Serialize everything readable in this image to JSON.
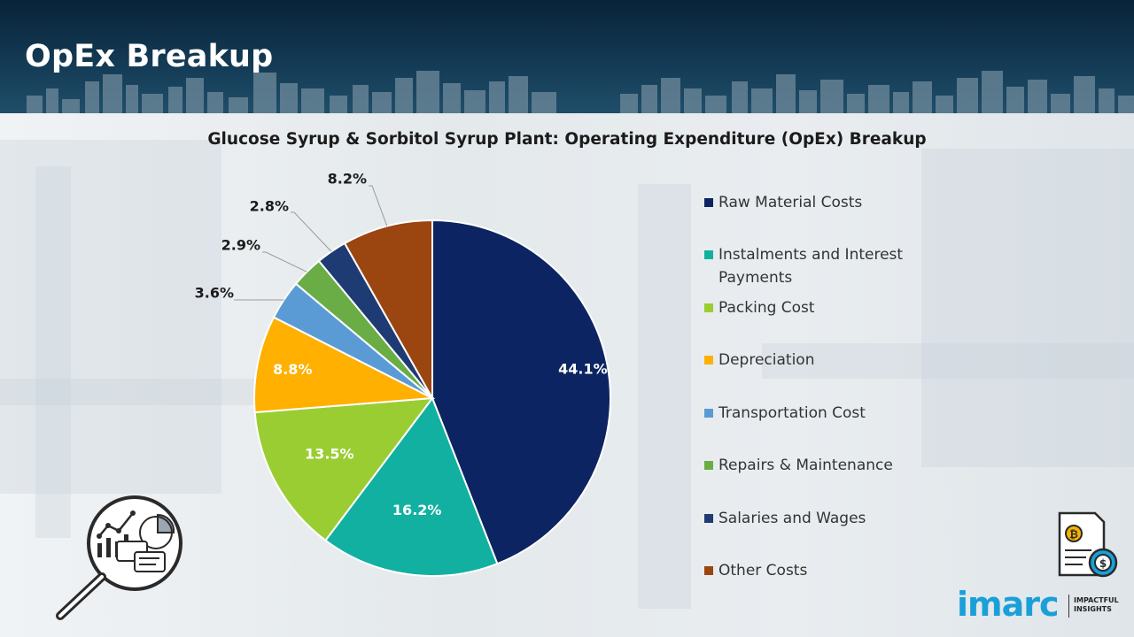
{
  "header": {
    "title": "OpEx Breakup"
  },
  "chart_data": {
    "type": "pie",
    "title": "Glucose Syrup & Sorbitol Syrup Plant: Operating Expenditure (OpEx) Breakup",
    "categories": [
      "Raw Material Costs",
      "Instalments and Interest Payments",
      "Packing Cost",
      "Depreciation",
      "Transportation Cost",
      "Repairs & Maintenance",
      "Salaries and Wages",
      "Other Costs"
    ],
    "values": [
      44.1,
      16.2,
      13.5,
      8.8,
      3.6,
      2.9,
      2.8,
      8.2
    ],
    "labels": [
      "44.1%",
      "16.2%",
      "13.5%",
      "8.8%",
      "3.6%",
      "2.9%",
      "2.8%",
      "8.2%"
    ],
    "colors": [
      "#0c2461",
      "#12b0a0",
      "#9acd32",
      "#ffb000",
      "#5b9bd5",
      "#6aad46",
      "#1f3b73",
      "#9b4510"
    ],
    "legend_position": "right",
    "start_angle": "12 o'clock, clockwise"
  },
  "logo": {
    "brand": "imarc",
    "tagline_1": "IMPACTFUL",
    "tagline_2": "INSIGHTS"
  },
  "icons": {
    "left": "magnifier-analytics-icon",
    "right": "cost-document-icon"
  }
}
